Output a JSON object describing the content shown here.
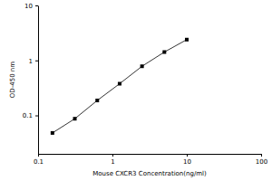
{
  "chart_data": {
    "type": "line",
    "x_label": "Mouse CXCR3 Concentration(ng/ml)",
    "y_label": "OD-450 nm",
    "x": [
      0.156,
      0.312,
      0.625,
      1.25,
      2.5,
      5,
      10
    ],
    "values": [
      0.048,
      0.087,
      0.187,
      0.377,
      0.783,
      1.42,
      2.39
    ],
    "log": true,
    "xlim": [
      0.1,
      100
    ],
    "xticks": [
      0.1,
      1,
      10,
      100
    ],
    "ylim": [
      0.02,
      10
    ],
    "yticks": [
      0.1,
      1,
      10
    ],
    "color": "#000000",
    "marker": "square",
    "line_style": "solid",
    "grid": false
  }
}
